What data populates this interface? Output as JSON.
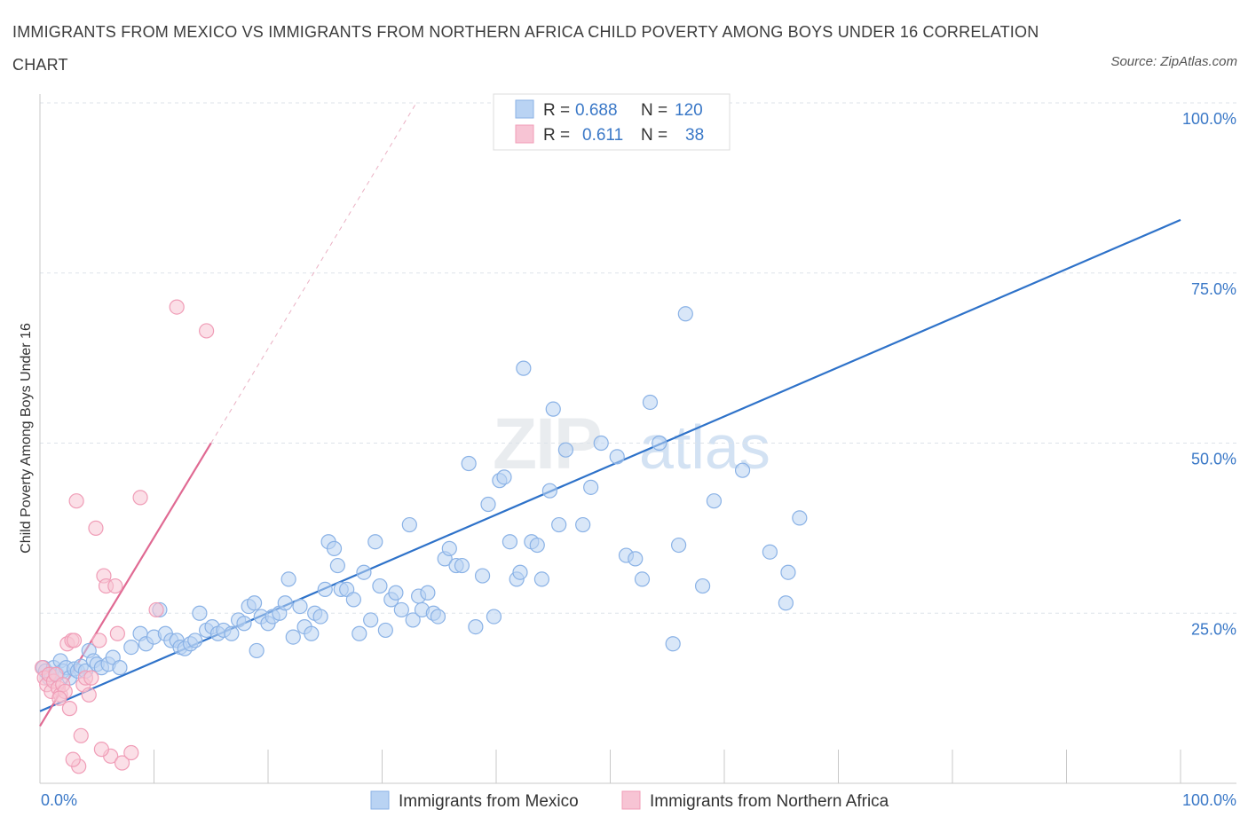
{
  "header": {
    "title": "IMMIGRANTS FROM MEXICO VS IMMIGRANTS FROM NORTHERN AFRICA CHILD POVERTY AMONG BOYS UNDER 16 CORRELATION CHART",
    "source": "Source: ZipAtlas.com"
  },
  "watermark": {
    "zip": "ZIP",
    "atlas": "atlas"
  },
  "legend": {
    "r_label": "R =",
    "n_label": "N =",
    "series1": {
      "r": "0.688",
      "n": "120"
    },
    "series2": {
      "r": "0.611",
      "n": "38"
    }
  },
  "colors": {
    "mexico_fill": "#b9d3f3",
    "mexico_stroke": "#8ab2e6",
    "mexico_line": "#2e72c9",
    "africa_fill": "#f7c4d4",
    "africa_stroke": "#f09db7",
    "africa_line": "#e06a93",
    "tick_label": "#3a78c7",
    "grid": "#dde3ea"
  },
  "chart_data": {
    "type": "scatter",
    "title": "IMMIGRANTS FROM MEXICO VS IMMIGRANTS FROM NORTHERN AFRICA CHILD POVERTY AMONG BOYS UNDER 16 CORRELATION CHART",
    "ylabel": "Child Poverty Among Boys Under 16",
    "xlabel": "",
    "xlim": [
      0,
      100
    ],
    "ylim": [
      0,
      100
    ],
    "x_tick_labels": [
      "0.0%",
      "100.0%"
    ],
    "y_tick_labels": [
      "25.0%",
      "50.0%",
      "75.0%",
      "100.0%"
    ],
    "y_ticks": [
      25,
      50,
      75,
      100
    ],
    "grid": true,
    "legend_position": "top-center",
    "series": [
      {
        "name": "Immigrants from Mexico",
        "r": 0.688,
        "n": 120,
        "trend": {
          "x": [
            0,
            100
          ],
          "y": [
            10.6,
            82.8
          ]
        },
        "points": [
          [
            0.3,
            17
          ],
          [
            0.5,
            16.5
          ],
          [
            0.8,
            15.5
          ],
          [
            1,
            16
          ],
          [
            1.2,
            17
          ],
          [
            1.5,
            16
          ],
          [
            1.8,
            18
          ],
          [
            2,
            16.5
          ],
          [
            2.3,
            17
          ],
          [
            2.6,
            15.5
          ],
          [
            3,
            16.8
          ],
          [
            3.3,
            16.5
          ],
          [
            3.6,
            17.2
          ],
          [
            4,
            16.5
          ],
          [
            4.3,
            19.5
          ],
          [
            4.7,
            18
          ],
          [
            5,
            17.5
          ],
          [
            5.4,
            17
          ],
          [
            6,
            17.5
          ],
          [
            6.4,
            18.5
          ],
          [
            7,
            17
          ],
          [
            8,
            20
          ],
          [
            8.8,
            22
          ],
          [
            9.3,
            20.5
          ],
          [
            10,
            21.5
          ],
          [
            10.5,
            25.5
          ],
          [
            11,
            22
          ],
          [
            11.5,
            21
          ],
          [
            12,
            21
          ],
          [
            12.3,
            20
          ],
          [
            12.7,
            19.8
          ],
          [
            13.2,
            20.5
          ],
          [
            13.6,
            21
          ],
          [
            14,
            25
          ],
          [
            14.6,
            22.5
          ],
          [
            15.1,
            23
          ],
          [
            15.6,
            22
          ],
          [
            16.1,
            22.5
          ],
          [
            16.8,
            22
          ],
          [
            17.4,
            24
          ],
          [
            17.9,
            23.5
          ],
          [
            18.3,
            26
          ],
          [
            18.8,
            26.5
          ],
          [
            19,
            19.5
          ],
          [
            19.4,
            24.5
          ],
          [
            20,
            23.5
          ],
          [
            20.4,
            24.5
          ],
          [
            21,
            25
          ],
          [
            21.5,
            26.5
          ],
          [
            21.8,
            30
          ],
          [
            22.2,
            21.5
          ],
          [
            22.8,
            26
          ],
          [
            23.2,
            23
          ],
          [
            23.8,
            22
          ],
          [
            24.1,
            25
          ],
          [
            24.6,
            24.5
          ],
          [
            25,
            28.5
          ],
          [
            25.3,
            35.5
          ],
          [
            25.8,
            34.5
          ],
          [
            26.1,
            32
          ],
          [
            26.4,
            28.5
          ],
          [
            26.9,
            28.5
          ],
          [
            27.5,
            27
          ],
          [
            28,
            22
          ],
          [
            28.4,
            31
          ],
          [
            29,
            24
          ],
          [
            29.4,
            35.5
          ],
          [
            29.8,
            29
          ],
          [
            30.3,
            22.5
          ],
          [
            30.8,
            27
          ],
          [
            31.2,
            28
          ],
          [
            31.7,
            25.5
          ],
          [
            32.4,
            38
          ],
          [
            32.7,
            24
          ],
          [
            33.2,
            27.5
          ],
          [
            33.5,
            25.5
          ],
          [
            34,
            28
          ],
          [
            34.5,
            25
          ],
          [
            34.9,
            24.5
          ],
          [
            35.5,
            33
          ],
          [
            35.9,
            34.5
          ],
          [
            36.5,
            32
          ],
          [
            37,
            32
          ],
          [
            37.6,
            47
          ],
          [
            38.2,
            23
          ],
          [
            38.8,
            30.5
          ],
          [
            39.3,
            41
          ],
          [
            39.8,
            24.5
          ],
          [
            40.3,
            44.5
          ],
          [
            40.7,
            45
          ],
          [
            41.2,
            35.5
          ],
          [
            41.8,
            30
          ],
          [
            42.1,
            31
          ],
          [
            42.4,
            61
          ],
          [
            43.1,
            35.5
          ],
          [
            43.6,
            35
          ],
          [
            44,
            30
          ],
          [
            44.7,
            43
          ],
          [
            45,
            55
          ],
          [
            45.5,
            38
          ],
          [
            46.1,
            49
          ],
          [
            47.6,
            38
          ],
          [
            48.3,
            43.5
          ],
          [
            49.2,
            50
          ],
          [
            50.6,
            48
          ],
          [
            51.4,
            33.5
          ],
          [
            52.2,
            33
          ],
          [
            52.8,
            30
          ],
          [
            53.5,
            56
          ],
          [
            54.3,
            50
          ],
          [
            55.5,
            20.5
          ],
          [
            56,
            35
          ],
          [
            56.6,
            69
          ],
          [
            58.1,
            29
          ],
          [
            59.1,
            41.5
          ],
          [
            61.6,
            46
          ],
          [
            64,
            34
          ],
          [
            65.6,
            31
          ],
          [
            65.4,
            26.5
          ],
          [
            66.6,
            39
          ]
        ]
      },
      {
        "name": "Immigrants from Northern Africa",
        "r": 0.611,
        "n": 38,
        "trend": {
          "x": [
            0,
            15
          ],
          "y": [
            8.4,
            50
          ]
        },
        "trend_extension": {
          "x": [
            15,
            33
          ],
          "y": [
            50,
            100
          ]
        },
        "points": [
          [
            0.2,
            17
          ],
          [
            0.4,
            15.5
          ],
          [
            0.6,
            14.5
          ],
          [
            0.8,
            16
          ],
          [
            1,
            13.5
          ],
          [
            1.2,
            15
          ],
          [
            1.4,
            16
          ],
          [
            1.6,
            14
          ],
          [
            1.8,
            13
          ],
          [
            2,
            14.5
          ],
          [
            2.2,
            13.5
          ],
          [
            2.4,
            20.5
          ],
          [
            2.6,
            11
          ],
          [
            2.8,
            21
          ],
          [
            3,
            21
          ],
          [
            3.4,
            2.5
          ],
          [
            3.6,
            7
          ],
          [
            3.8,
            14.5
          ],
          [
            4,
            15.5
          ],
          [
            4.3,
            13
          ],
          [
            4.5,
            15.5
          ],
          [
            4.9,
            37.5
          ],
          [
            5.2,
            21
          ],
          [
            5.6,
            30.5
          ],
          [
            5.8,
            29
          ],
          [
            6.2,
            4
          ],
          [
            6.6,
            29
          ],
          [
            6.8,
            22
          ],
          [
            7.2,
            3
          ],
          [
            8,
            4.5
          ],
          [
            8.8,
            42
          ],
          [
            10.2,
            25.5
          ],
          [
            12,
            70
          ],
          [
            14.6,
            66.5
          ],
          [
            3.2,
            41.5
          ],
          [
            5.4,
            5
          ],
          [
            2.9,
            3.5
          ],
          [
            1.7,
            12.5
          ]
        ]
      }
    ]
  }
}
